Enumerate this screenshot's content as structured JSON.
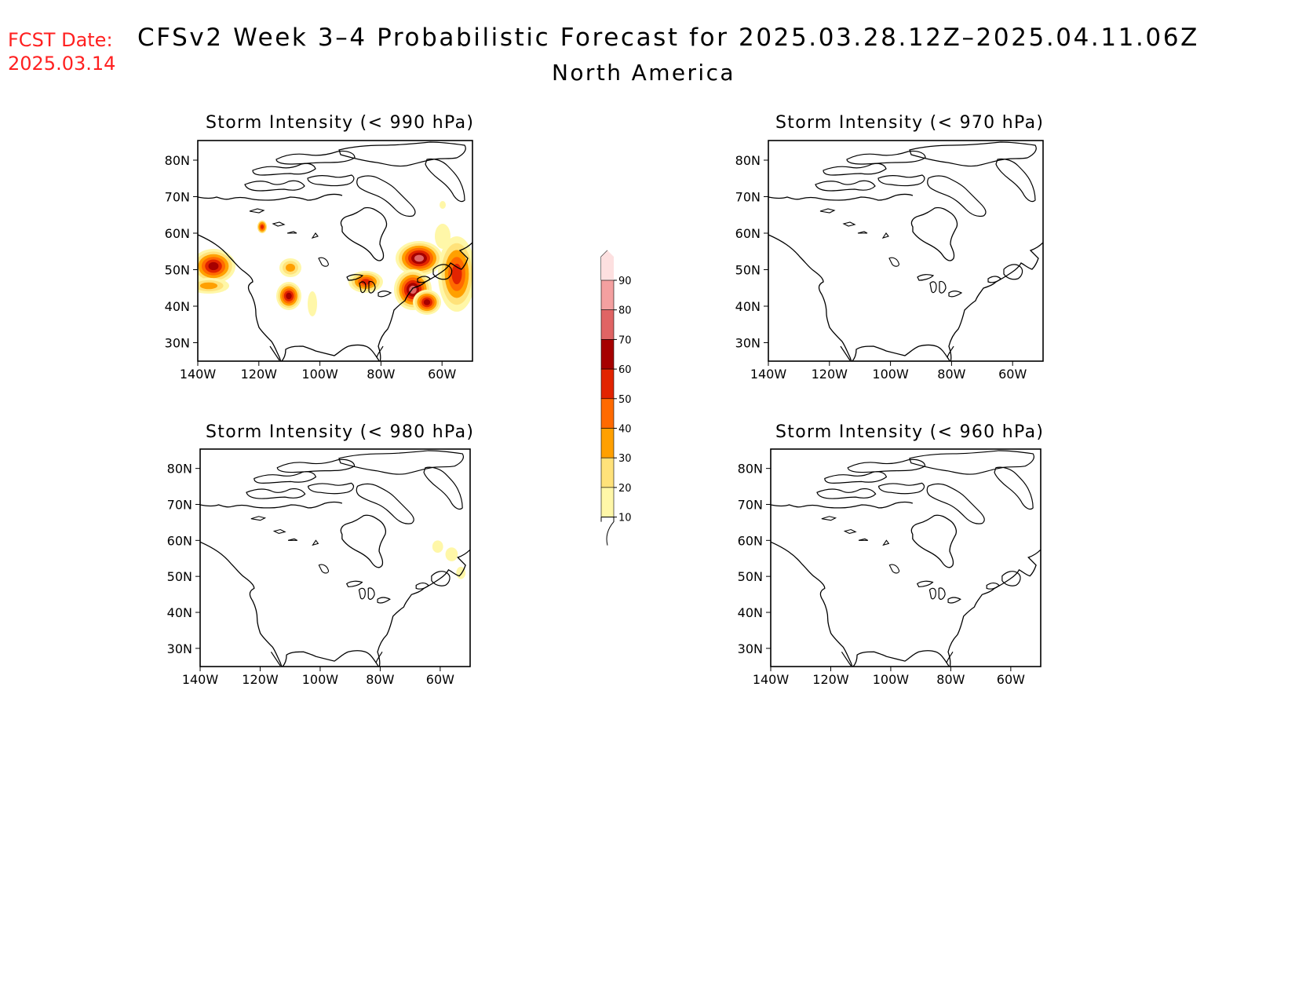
{
  "header": {
    "fcst_label": "FCST Date:",
    "fcst_date": "2025.03.14",
    "title": "CFSv2 Week 3–4 Probabilistic Forecast for 2025.03.28.12Z–2025.04.11.06Z",
    "region": "North America"
  },
  "panels": [
    {
      "title": "Storm Intensity (< 990 hPa)",
      "has_probability": true
    },
    {
      "title": "Storm Intensity (< 970 hPa)",
      "has_probability": false
    },
    {
      "title": "Storm Intensity (< 980 hPa)",
      "has_probability": true
    },
    {
      "title": "Storm Intensity (< 960 hPa)",
      "has_probability": false
    }
  ],
  "axes": {
    "lat_labels": [
      "80N",
      "70N",
      "60N",
      "50N",
      "40N",
      "30N"
    ],
    "lon_labels": [
      "140W",
      "120W",
      "100W",
      "80W",
      "60W"
    ]
  },
  "colorbar": {
    "levels": [
      "10",
      "20",
      "30",
      "40",
      "50",
      "60",
      "70",
      "80",
      "90"
    ],
    "colors": [
      "#fff7a8",
      "#ffe27a",
      "#ffa000",
      "#ff6a00",
      "#e22400",
      "#a60000",
      "#e06464",
      "#f4a0a0",
      "#fde0e0"
    ]
  }
}
